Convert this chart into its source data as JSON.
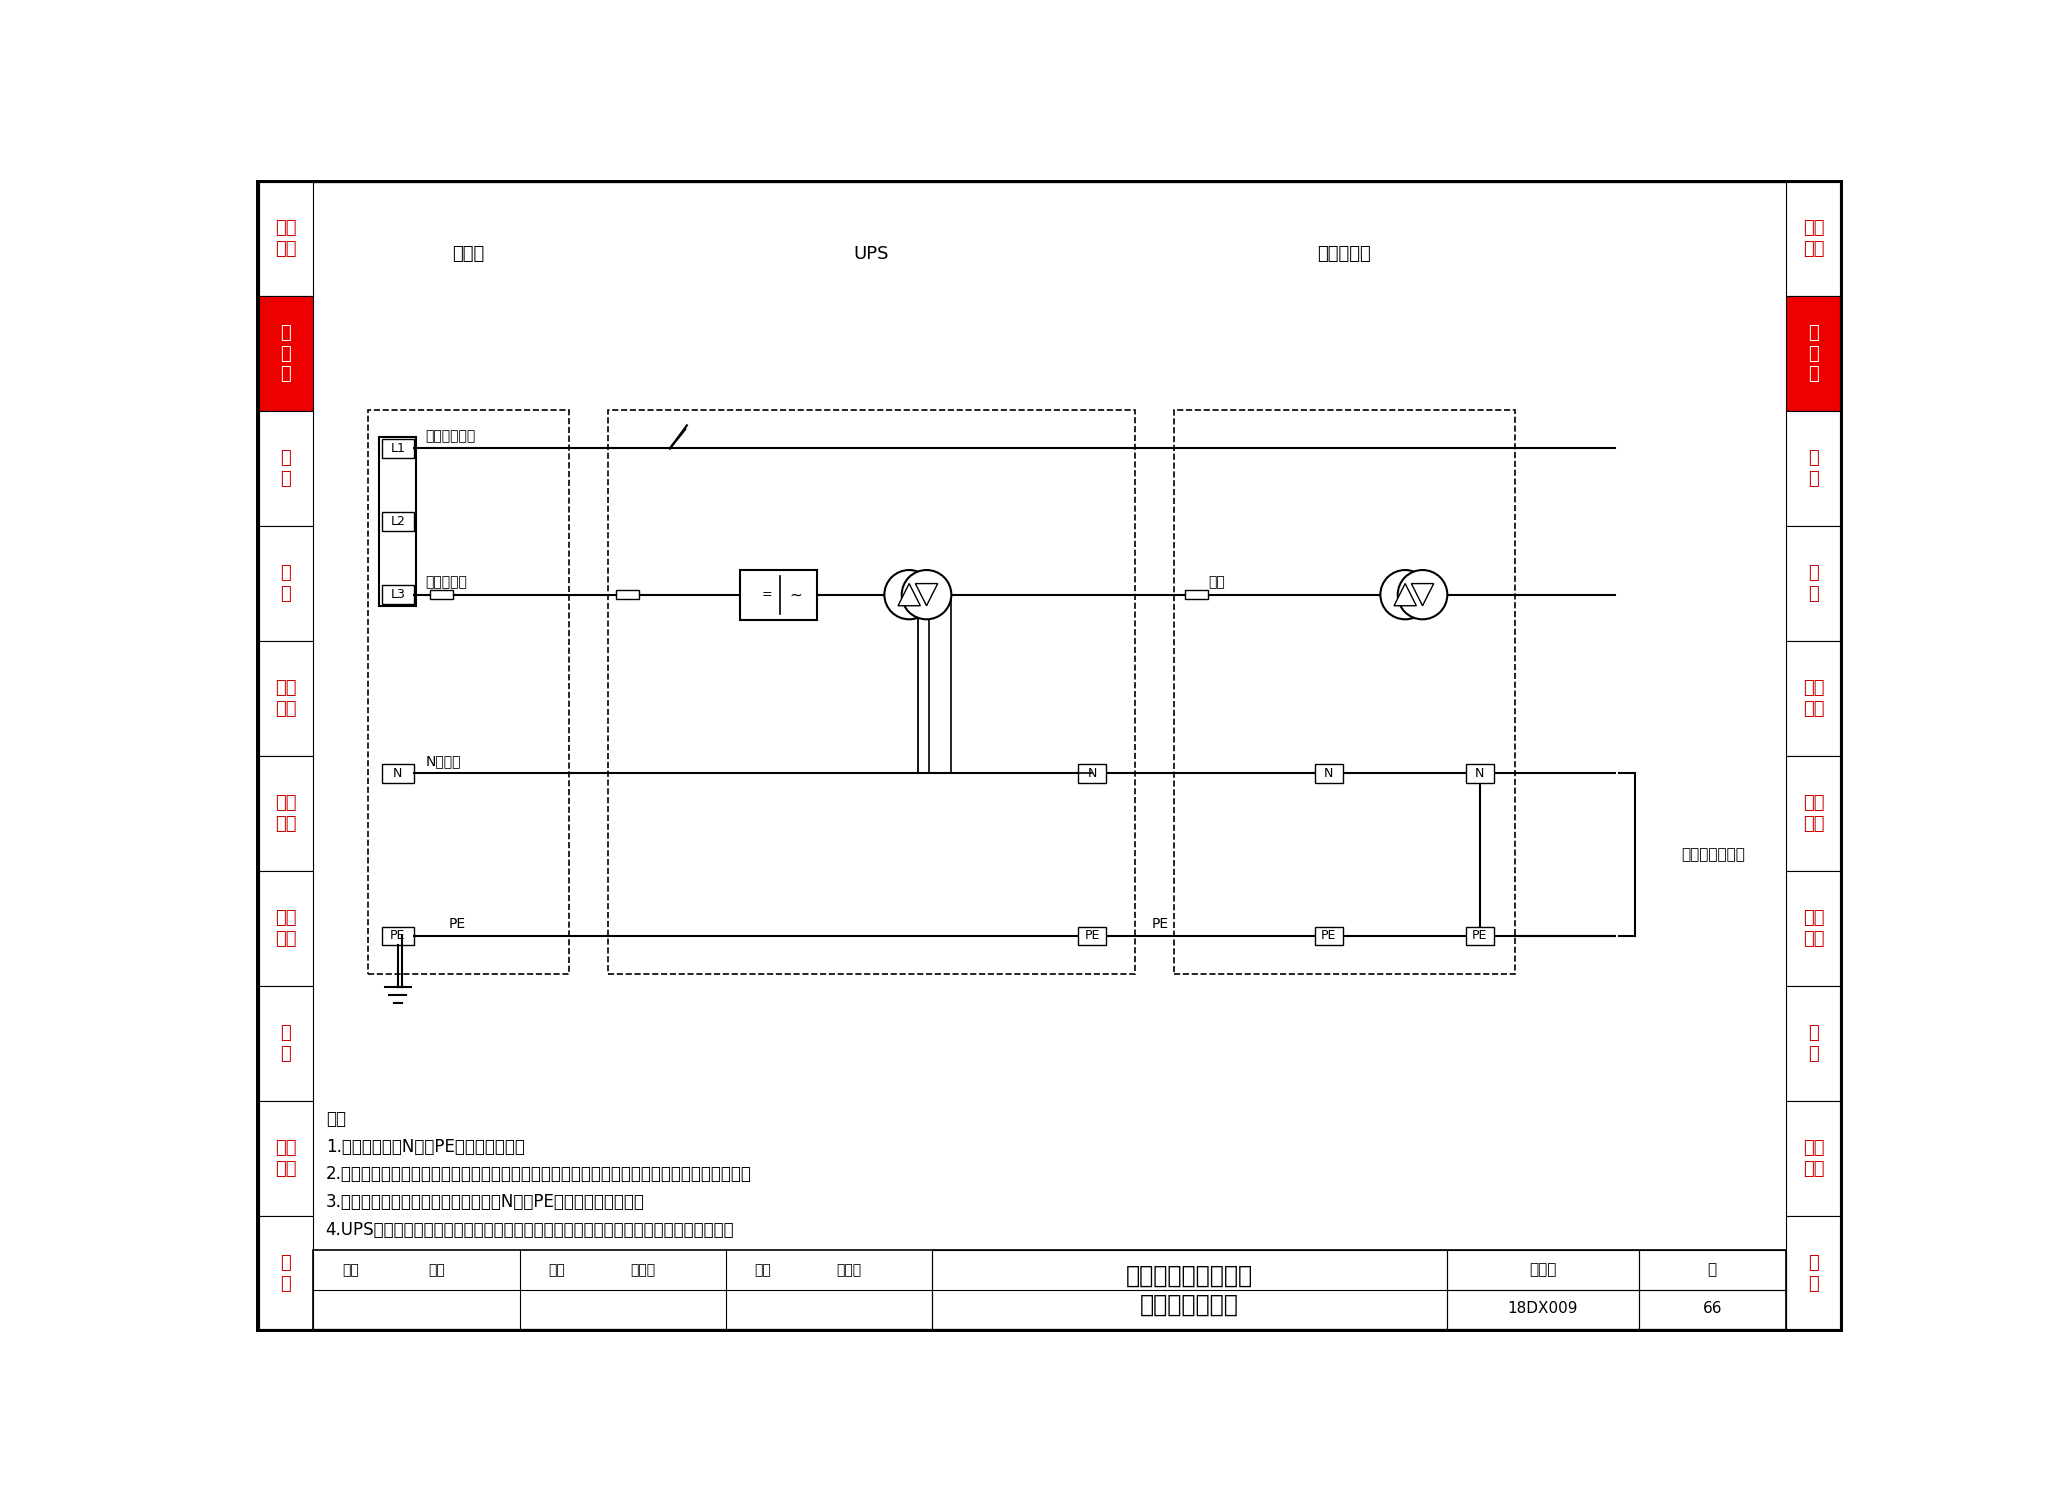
{
  "page_num": "66",
  "atlas_num": "18DX009",
  "bg_color": "#FFFFFF",
  "sidebar_items": [
    "建筑\n结构",
    "供\n配\n电",
    "接\n地",
    "监\n控",
    "网络\n布线",
    "电磁\n屏蔽",
    "空气\n调节",
    "消\n防",
    "工程\n示例",
    "附\n录"
  ],
  "sidebar_highlight_index": 1,
  "sidebar_text_color": "#CC0000",
  "sidebar_highlight_bg": "#EE0000",
  "sidebar_highlight_text": "#FFFFFF",
  "notes_lines": [
    "注：",
    "1.零地电压是指N线与PE线之间的电压。",
    "2.当零地电压不满足电子信息设备要求时，在配电列头柜内增加隔离变压器，以降低零地电压。",
    "3.在配电列头柜内装设隔离变压器后，N线与PE线才可短接并接地。",
    "4.UPS设备在逆变器输出侧设置隔离变压器，使逆变器中性点接地，并与旁路电源隔离。"
  ],
  "section_labels": [
    "变电所",
    "UPS",
    "配电列头柜"
  ],
  "title_line1": "利用隔离变压器降低",
  "title_line2": "零地电压原理图",
  "atlas_label": "图集号",
  "page_label": "页",
  "sig_row": "审核  孙兰      校对  昊怀颐      设计  钟景华",
  "line_label_bypass": "三相旁路输入",
  "line_label_main": "三相主输入",
  "line_label_n": "N线旁路",
  "line_label_pe": "PE",
  "line_label_3phase": "三相",
  "line_label_device": "接电子信息设备"
}
